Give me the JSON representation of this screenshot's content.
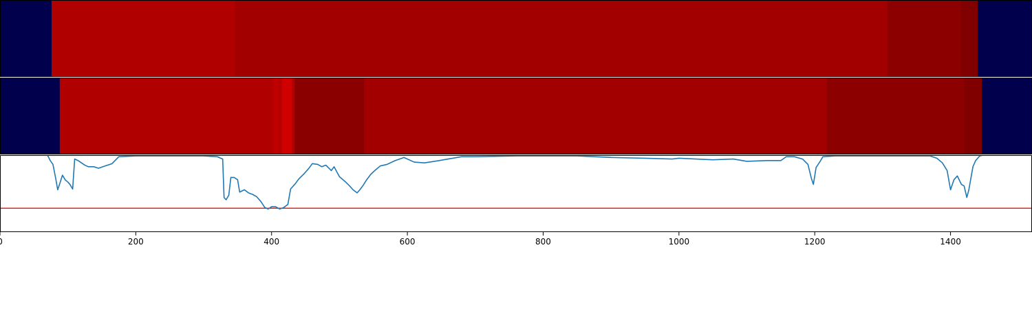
{
  "chart_data": [
    {
      "type": "heatmap",
      "title": "",
      "xlim": [
        0,
        1520
      ],
      "colormap": "seismic",
      "segments": [
        {
          "x0": 0,
          "x1": 76,
          "color": "#00004c"
        },
        {
          "x0": 76,
          "x1": 346,
          "color": "#b00000"
        },
        {
          "x0": 346,
          "x1": 1307,
          "color": "#a20000"
        },
        {
          "x0": 1307,
          "x1": 1415,
          "color": "#8d0000"
        },
        {
          "x0": 1415,
          "x1": 1440,
          "color": "#800000"
        },
        {
          "x0": 1440,
          "x1": 1520,
          "color": "#00004c"
        }
      ]
    },
    {
      "type": "heatmap",
      "title": "",
      "xlim": [
        0,
        1520
      ],
      "colormap": "seismic",
      "segments": [
        {
          "x0": 0,
          "x1": 88,
          "color": "#00004c"
        },
        {
          "x0": 88,
          "x1": 402,
          "color": "#b00000"
        },
        {
          "x0": 402,
          "x1": 410,
          "color": "#c00000"
        },
        {
          "x0": 410,
          "x1": 415,
          "color": "#b40000"
        },
        {
          "x0": 415,
          "x1": 430,
          "color": "#d00000"
        },
        {
          "x0": 430,
          "x1": 434,
          "color": "#b00000"
        },
        {
          "x0": 434,
          "x1": 536,
          "color": "#8a0000"
        },
        {
          "x0": 536,
          "x1": 1218,
          "color": "#a20000"
        },
        {
          "x0": 1218,
          "x1": 1420,
          "color": "#8d0000"
        },
        {
          "x0": 1420,
          "x1": 1446,
          "color": "#800000"
        },
        {
          "x0": 1446,
          "x1": 1520,
          "color": "#00004c"
        }
      ]
    },
    {
      "type": "line",
      "title": "",
      "xlabel": "",
      "ylabel": "",
      "xlim": [
        0,
        1520
      ],
      "ylim": [
        0,
        1
      ],
      "grid": false,
      "xticks": [
        "0",
        "200",
        "400",
        "600",
        "800",
        "1000",
        "1200",
        "1400"
      ],
      "threshold": {
        "y": 0.31,
        "color": "#e8211c"
      },
      "series": [
        {
          "color": "#1f77b4",
          "points": [
            [
              70,
              1.0
            ],
            [
              74,
              0.93
            ],
            [
              78,
              0.88
            ],
            [
              82,
              0.7
            ],
            [
              85,
              0.55
            ],
            [
              88,
              0.63
            ],
            [
              92,
              0.74
            ],
            [
              96,
              0.68
            ],
            [
              100,
              0.65
            ],
            [
              103,
              0.62
            ],
            [
              107,
              0.56
            ],
            [
              110,
              0.95
            ],
            [
              115,
              0.93
            ],
            [
              120,
              0.9
            ],
            [
              125,
              0.87
            ],
            [
              130,
              0.85
            ],
            [
              138,
              0.85
            ],
            [
              145,
              0.83
            ],
            [
              155,
              0.86
            ],
            [
              165,
              0.89
            ],
            [
              175,
              0.98
            ],
            [
              200,
              0.99
            ],
            [
              250,
              0.99
            ],
            [
              300,
              0.99
            ],
            [
              320,
              0.98
            ],
            [
              328,
              0.95
            ],
            [
              330,
              0.45
            ],
            [
              333,
              0.42
            ],
            [
              337,
              0.48
            ],
            [
              340,
              0.71
            ],
            [
              345,
              0.71
            ],
            [
              350,
              0.68
            ],
            [
              353,
              0.52
            ],
            [
              360,
              0.55
            ],
            [
              366,
              0.51
            ],
            [
              372,
              0.49
            ],
            [
              378,
              0.46
            ],
            [
              384,
              0.4
            ],
            [
              390,
              0.32
            ],
            [
              395,
              0.3
            ],
            [
              400,
              0.33
            ],
            [
              406,
              0.33
            ],
            [
              412,
              0.3
            ],
            [
              418,
              0.32
            ],
            [
              424,
              0.36
            ],
            [
              428,
              0.56
            ],
            [
              435,
              0.63
            ],
            [
              440,
              0.69
            ],
            [
              448,
              0.76
            ],
            [
              455,
              0.83
            ],
            [
              460,
              0.89
            ],
            [
              468,
              0.88
            ],
            [
              474,
              0.85
            ],
            [
              480,
              0.87
            ],
            [
              488,
              0.8
            ],
            [
              492,
              0.85
            ],
            [
              500,
              0.72
            ],
            [
              508,
              0.66
            ],
            [
              515,
              0.6
            ],
            [
              520,
              0.55
            ],
            [
              526,
              0.51
            ],
            [
              530,
              0.55
            ],
            [
              535,
              0.61
            ],
            [
              540,
              0.68
            ],
            [
              546,
              0.75
            ],
            [
              552,
              0.8
            ],
            [
              560,
              0.86
            ],
            [
              570,
              0.88
            ],
            [
              582,
              0.93
            ],
            [
              595,
              0.97
            ],
            [
              610,
              0.91
            ],
            [
              625,
              0.9
            ],
            [
              640,
              0.92
            ],
            [
              660,
              0.95
            ],
            [
              680,
              0.98
            ],
            [
              700,
              0.98
            ],
            [
              760,
              0.99
            ],
            [
              850,
              0.99
            ],
            [
              900,
              0.97
            ],
            [
              950,
              0.96
            ],
            [
              990,
              0.95
            ],
            [
              1000,
              0.96
            ],
            [
              1050,
              0.94
            ],
            [
              1080,
              0.95
            ],
            [
              1100,
              0.92
            ],
            [
              1130,
              0.93
            ],
            [
              1150,
              0.93
            ],
            [
              1158,
              0.98
            ],
            [
              1170,
              0.98
            ],
            [
              1182,
              0.95
            ],
            [
              1190,
              0.88
            ],
            [
              1195,
              0.7
            ],
            [
              1198,
              0.62
            ],
            [
              1202,
              0.84
            ],
            [
              1208,
              0.92
            ],
            [
              1212,
              0.98
            ],
            [
              1230,
              0.99
            ],
            [
              1300,
              0.99
            ],
            [
              1370,
              0.99
            ],
            [
              1380,
              0.96
            ],
            [
              1388,
              0.9
            ],
            [
              1395,
              0.8
            ],
            [
              1400,
              0.55
            ],
            [
              1405,
              0.68
            ],
            [
              1410,
              0.73
            ],
            [
              1416,
              0.62
            ],
            [
              1420,
              0.6
            ],
            [
              1424,
              0.45
            ],
            [
              1427,
              0.55
            ],
            [
              1430,
              0.7
            ],
            [
              1433,
              0.85
            ],
            [
              1437,
              0.93
            ],
            [
              1443,
              0.99
            ],
            [
              1448,
              1.0
            ]
          ]
        }
      ]
    }
  ]
}
